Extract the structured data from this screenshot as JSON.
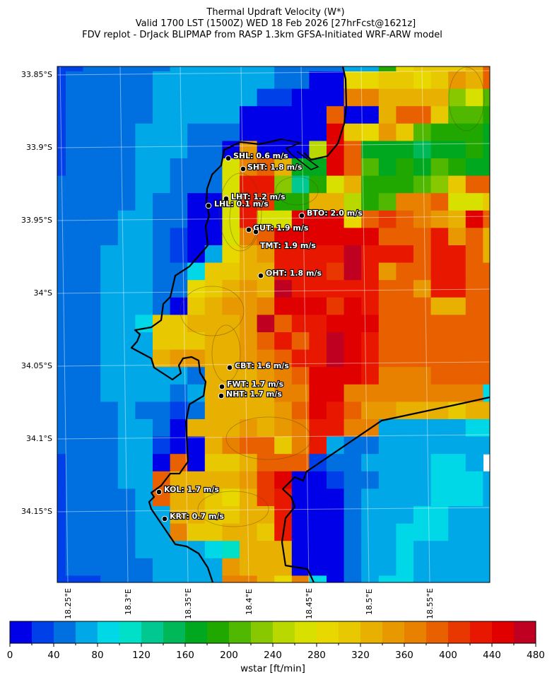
{
  "chart_data": {
    "type": "heatmap",
    "title": [
      "Thermal Updraft Velocity (W*)",
      "Valid 1700 LST (1500Z) WED 18 Feb 2026 [27hrFcst@1621z]",
      "FDV replot - DrJack BLIPMAP from RASP 1.3km GFSA-Initiated WRF-ARW model"
    ],
    "y_ticks": [
      "33.85°S",
      "33.9°S",
      "33.95°S",
      "34°S",
      "34.05°S",
      "34.1°S",
      "34.15°S"
    ],
    "x_ticks": [
      "18.25°E",
      "18.3°E",
      "18.35°E",
      "18.4°E",
      "18.45°E",
      "18.5°E",
      "18.55°E"
    ],
    "colorbar": {
      "label": "wstar [ft/min]",
      "range": [
        0,
        480
      ],
      "step": 20,
      "tick_labels": [
        "0",
        "40",
        "80",
        "120",
        "160",
        "200",
        "240",
        "280",
        "320",
        "360",
        "400",
        "440",
        "480"
      ],
      "colors": [
        "#0000e8",
        "#0040e8",
        "#0070e0",
        "#00a8e8",
        "#00d8e8",
        "#00e0c8",
        "#00c890",
        "#00b858",
        "#00a820",
        "#20a800",
        "#50b800",
        "#88c800",
        "#b8d800",
        "#d8e000",
        "#e8d800",
        "#e8c800",
        "#e8b000",
        "#e89800",
        "#e88000",
        "#e86000",
        "#e83800",
        "#e81800",
        "#e00000",
        "#c00020"
      ]
    },
    "cells": [
      "bbcccccddddddccccddjopppqt",
      "bcccccdddddddccaaooppoprqt",
      "bcccccddddddbbaaassqqqqlnk",
      "bcccccdddddaaaaataaqttpkkj",
      "bccccdddcccaaaaawporpkjjji",
      "bccccdddccaraaamwtiiihiiji",
      "bccccddcccnstqiiwtkijikjii",
      "cccccddcccnvvlgjnqjjjklptt",
      "cccccdccaanvujjqqmjksstnnp",
      "ccccddccaanvnnwwwotutsrqwt",
      "ccccddcbaanstwwwwwwtttvrtq",
      "cccdddcbadoqrvvvvxvvvtvvtq",
      "cccdddcceppqqvvvuxvrttvvtt",
      "cccdddccopqrqxvvvvvttrvvtt",
      "cccdddcapqrrswwwuwvtttqqtt",
      "cccddeppqqqrxtvvwwwttttttt",
      "cccdddpppqqrtvtvxwvttttttt",
      "cccdddqrrqqrstvvxwvttttttt",
      "cccdddddcqqqrstwwwvssstttto",
      "cccddddcdqqqqsswwsssssssse",
      "ccccdccbcqqqqrtwvtrrqqqpqq",
      "ccccddcaqqqrqrsvvssdddddee",
      "ccccddbaaqsttpsvdccddddddd",
      "bcccddatappqtttbccddddeed",
      "bcccddtqqqqruwaabccdddeeed",
      "bccccdtqqpoquvaaacddddeeed",
      "bccccddqqppqqvaaacdddeeddd",
      "bccccddsppqqpvaaacddeeeddd",
      "bccccddddefqqqaaacddedddddd",
      "bcccccddddrqqqaaacddeddddd",
      "bbbcccddddssqoseacdeeddddd"
    ],
    "stations": [
      {
        "label": "SHL: 0.6 m/s"
      },
      {
        "label": "SHT: 1.8 m/s"
      },
      {
        "label": "LHT: 1.2 m/s"
      },
      {
        "label": "LHL: 0.1 m/s"
      },
      {
        "label": "BTO: 2.0 m/s"
      },
      {
        "label": "GUT: 1.9 m/s"
      },
      {
        "label": "TMT: 1.9 m/s"
      },
      {
        "label": "OHT: 1.8 m/s"
      },
      {
        "label": "CBT: 1.6 m/s"
      },
      {
        "label": "FWT: 1.7 m/s"
      },
      {
        "label": "NHT: 1.7 m/s"
      },
      {
        "label": "KOL: 1.7 m/s"
      },
      {
        "label": "KRT: 0.7 m/s"
      }
    ]
  }
}
